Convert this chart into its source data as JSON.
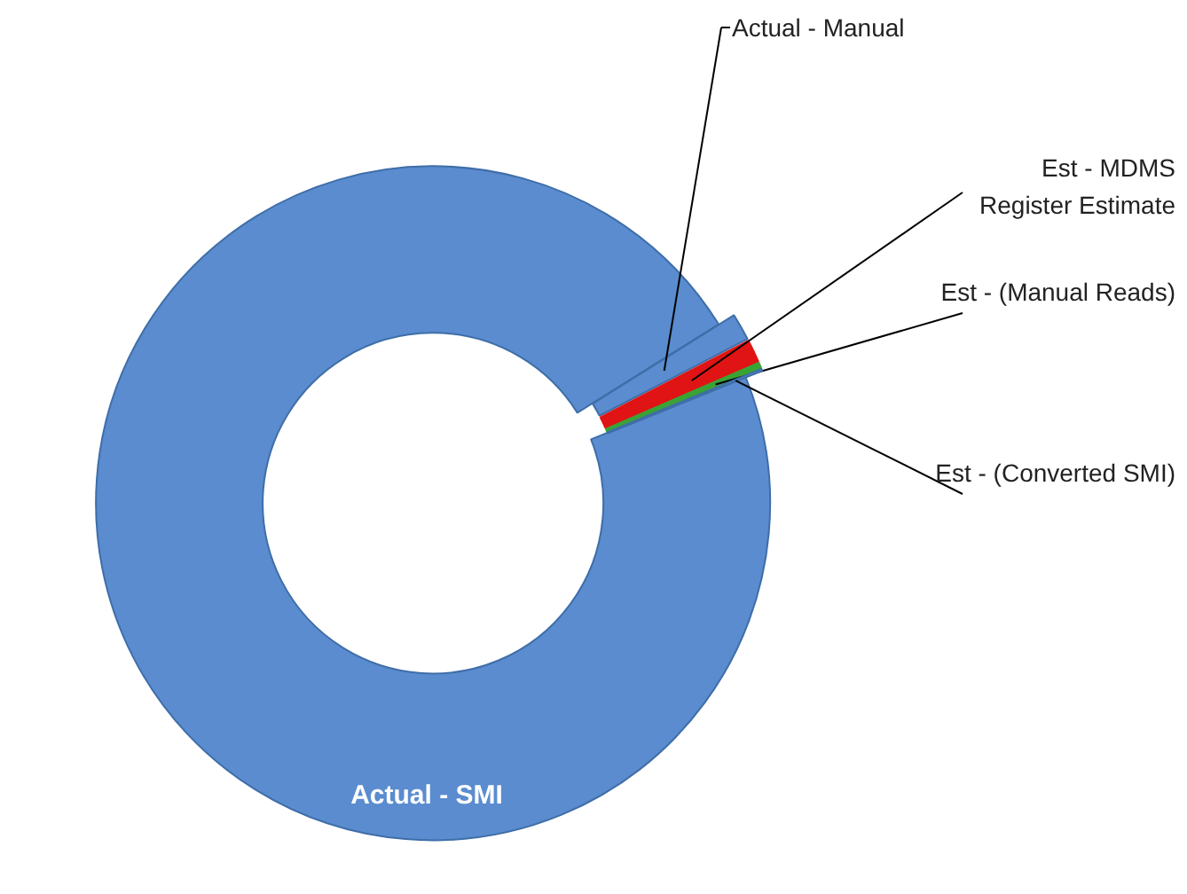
{
  "chart_data": {
    "type": "donut",
    "categories": [
      "Actual - SMI",
      "Actual - Manual",
      "Est - MDMS\nRegister Estimate",
      "Est - (Manual Reads)",
      "Est - (Converted SMI)"
    ],
    "values": [
      97.2,
      1.3,
      1.1,
      0.3,
      0.1
    ],
    "colors": [
      "#5a8ccf",
      "#5a8ccf",
      "#e01414",
      "#3aa335",
      "#5a8ccf"
    ]
  }
}
